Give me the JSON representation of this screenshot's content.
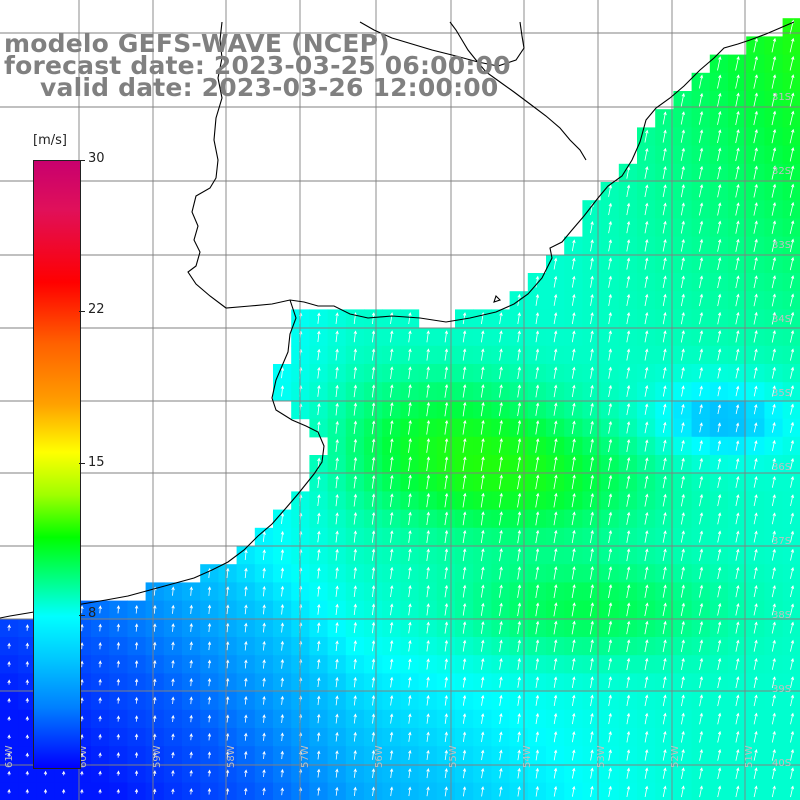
{
  "title": {
    "line1": "modelo GEFS-WAVE (NCEP)",
    "line2": "forecast date: 2023-03-25 06:00:00",
    "line3": "valid date: 2023-03-26 12:00:00"
  },
  "colorbar": {
    "unit": "[m/s]",
    "ticks": [
      "30",
      "22",
      "15",
      "8"
    ],
    "colors": [
      "#c8006e",
      "#ff0000",
      "#ff6000",
      "#ffff00",
      "#00ff00",
      "#00ffff",
      "#0080ff",
      "#0000ff"
    ]
  },
  "axes": {
    "lon_labels": [
      "61W",
      "60W",
      "59W",
      "58W",
      "57W",
      "56W",
      "55W",
      "54W",
      "53W",
      "52W",
      "51W"
    ],
    "lat_labels": [
      "31S",
      "32S",
      "33S",
      "34S",
      "35S",
      "36S",
      "37S",
      "38S",
      "39S",
      "40S"
    ]
  },
  "colors": {
    "land": "#ffffff",
    "coastline": "#000000",
    "grid": "#808080",
    "arrows": "#ffffff",
    "title": "#808080"
  }
}
